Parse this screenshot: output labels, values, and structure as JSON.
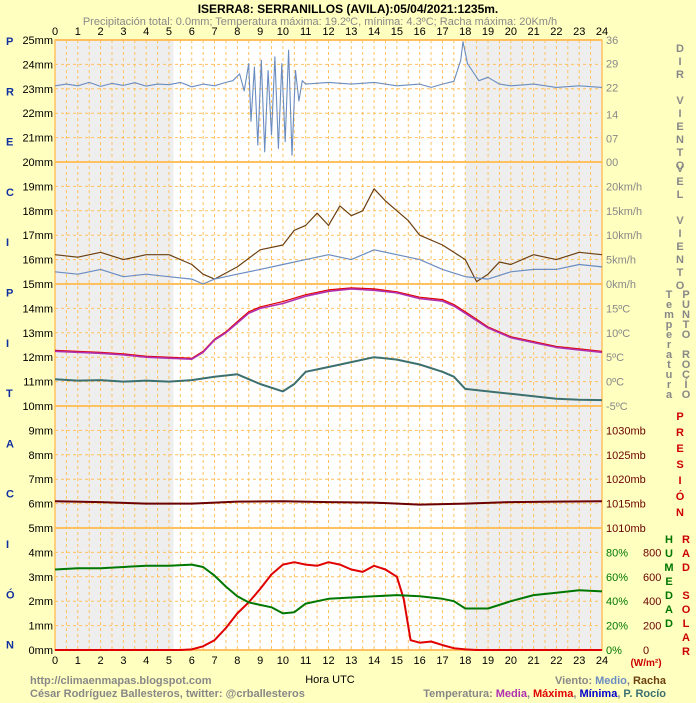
{
  "header": {
    "title": "ISERRA8: SERRANILLOS (AVILA):05/04/2021:1235m.",
    "subtitle": "Precipitación total: 0.0mm; Temperatura máxima: 19.2ºC, mínima: 4.3ºC; Racha máxima: 20Km/h"
  },
  "footer": {
    "url": "http://climaenmapas.blogspot.com",
    "author": "César Rodríguez Ballesteros, twitter: @crballesteros",
    "xlabel": "Hora UTC",
    "wind_legend": {
      "prefix": "Viento:",
      "medio": "Medio",
      "sep": ",",
      "racha": "Racha"
    },
    "temp_legend": {
      "prefix": "Temperatura:",
      "media": "Media",
      "maxima": "Máxima",
      "minima": "Mínima",
      "rocio": "P. Rocío"
    }
  },
  "colors": {
    "background": "#ffffc0",
    "plot": "#ffffff",
    "night": "#eeeeee",
    "grid": "#ffc060",
    "blue": "#6a8cc0",
    "brown": "#6b3f10",
    "purple": "#b030b0",
    "red": "#e00000",
    "teal": "#3c7070",
    "maroon": "#6b0000",
    "green": "#007700",
    "title": "#000000",
    "gray": "#888888"
  },
  "left_axis_letters": [
    "P",
    "R",
    "E",
    "C",
    "I",
    "P",
    "I",
    "T",
    "A",
    "C",
    "I",
    "Ó",
    "N"
  ],
  "side_labels": {
    "wind_dir": "DIR VIENTO",
    "wind_vel": "VEL VIENTO",
    "temp": "Temperatura",
    "dew": "PUNTO ROCÍO",
    "pres": "PRESIÓN",
    "hum": "HUMEDAD",
    "rad": "RAD SOLAR",
    "rad_unit": "(W/m²)"
  },
  "chart_data": {
    "type": "line",
    "x_ticks": [
      "0",
      "1",
      "2",
      "3",
      "4",
      "5",
      "6",
      "7",
      "8",
      "9",
      "10",
      "11",
      "12",
      "13",
      "14",
      "15",
      "16",
      "17",
      "18",
      "19",
      "20",
      "21",
      "22",
      "23",
      "24"
    ],
    "xlim": [
      0,
      24
    ],
    "night_hours": [
      [
        0,
        5.2
      ],
      [
        18,
        24
      ]
    ],
    "precip_ticks": [
      "0mm",
      "1mm",
      "2mm",
      "3mm",
      "4mm",
      "5mm",
      "6mm",
      "7mm",
      "8mm",
      "9mm",
      "10mm",
      "11mm",
      "12mm",
      "13mm",
      "14mm",
      "15mm",
      "16mm",
      "17mm",
      "18mm",
      "19mm",
      "20mm",
      "21mm",
      "22mm",
      "23mm",
      "24mm",
      "25mm"
    ],
    "panels": {
      "wind_dir": {
        "ticks": [
          "00",
          "07",
          "14",
          "22",
          "29",
          "36"
        ],
        "ylim": [
          0,
          36
        ],
        "series": {
          "points": [
            [
              0,
              22.5
            ],
            [
              0.5,
              23
            ],
            [
              1,
              22.5
            ],
            [
              1.5,
              23.5
            ],
            [
              2,
              22.3
            ],
            [
              2.5,
              23.2
            ],
            [
              3,
              22.6
            ],
            [
              3.5,
              23.4
            ],
            [
              4,
              22.4
            ],
            [
              4.5,
              23
            ],
            [
              5,
              22.8
            ],
            [
              5.5,
              23.5
            ],
            [
              6,
              22.2
            ],
            [
              6.5,
              23
            ],
            [
              7,
              22.5
            ],
            [
              7.5,
              23.5
            ],
            [
              7.8,
              24
            ],
            [
              8.1,
              26
            ],
            [
              8.3,
              21
            ],
            [
              8.5,
              29
            ],
            [
              8.6,
              12
            ],
            [
              8.75,
              28
            ],
            [
              8.9,
              5
            ],
            [
              9.05,
              30
            ],
            [
              9.2,
              3
            ],
            [
              9.35,
              27
            ],
            [
              9.5,
              8
            ],
            [
              9.65,
              31
            ],
            [
              9.8,
              4
            ],
            [
              9.95,
              29
            ],
            [
              10.1,
              6
            ],
            [
              10.25,
              33
            ],
            [
              10.4,
              2
            ],
            [
              10.55,
              27
            ],
            [
              10.7,
              18
            ],
            [
              10.85,
              24
            ],
            [
              11,
              23
            ],
            [
              12,
              23.5
            ],
            [
              13,
              23
            ],
            [
              14,
              23.5
            ],
            [
              15,
              22.5
            ],
            [
              16,
              23
            ],
            [
              16.5,
              22
            ],
            [
              17,
              23
            ],
            [
              17.5,
              23.8
            ],
            [
              17.8,
              30
            ],
            [
              17.9,
              35.5
            ],
            [
              18.1,
              29
            ],
            [
              18.3,
              27
            ],
            [
              18.6,
              24
            ],
            [
              19,
              25
            ],
            [
              19.5,
              23
            ],
            [
              20,
              22.5
            ],
            [
              21,
              23
            ],
            [
              22,
              22
            ],
            [
              23,
              22.5
            ],
            [
              24,
              22
            ]
          ]
        }
      },
      "wind_speed": {
        "ticks": [
          "0km/h",
          "5km/h",
          "10km/h",
          "15km/h",
          "20km/h"
        ],
        "ylim": [
          0,
          25
        ],
        "medio": [
          [
            0,
            2.5
          ],
          [
            1,
            2
          ],
          [
            2,
            3
          ],
          [
            3,
            1.5
          ],
          [
            4,
            2
          ],
          [
            5,
            1.5
          ],
          [
            6,
            1
          ],
          [
            6.5,
            0
          ],
          [
            7,
            1
          ],
          [
            8,
            2
          ],
          [
            9,
            3
          ],
          [
            10,
            4
          ],
          [
            11,
            5
          ],
          [
            12,
            6
          ],
          [
            13,
            5
          ],
          [
            14,
            7
          ],
          [
            15,
            6
          ],
          [
            16,
            5
          ],
          [
            17,
            3
          ],
          [
            18,
            1.5
          ],
          [
            19,
            1
          ],
          [
            20,
            2.5
          ],
          [
            21,
            3
          ],
          [
            22,
            3
          ],
          [
            23,
            4
          ],
          [
            24,
            3.5
          ]
        ],
        "racha": [
          [
            0,
            6
          ],
          [
            1,
            5.5
          ],
          [
            2,
            6.5
          ],
          [
            3,
            5
          ],
          [
            4,
            6
          ],
          [
            5,
            6
          ],
          [
            6,
            4
          ],
          [
            6.5,
            2
          ],
          [
            7,
            1
          ],
          [
            8,
            3.5
          ],
          [
            9,
            7
          ],
          [
            10,
            8
          ],
          [
            10.5,
            11
          ],
          [
            11,
            12
          ],
          [
            11.5,
            14.5
          ],
          [
            12,
            12
          ],
          [
            12.5,
            16
          ],
          [
            13,
            14
          ],
          [
            13.5,
            15
          ],
          [
            14,
            19.5
          ],
          [
            14.5,
            17
          ],
          [
            15,
            15
          ],
          [
            15.5,
            13
          ],
          [
            16,
            10
          ],
          [
            17,
            8
          ],
          [
            18,
            5
          ],
          [
            18.5,
            0.5
          ],
          [
            19,
            2
          ],
          [
            19.5,
            4.5
          ],
          [
            20,
            4
          ],
          [
            21,
            6
          ],
          [
            22,
            5
          ],
          [
            23,
            6.5
          ],
          [
            24,
            6
          ]
        ]
      },
      "temp": {
        "ticks": [
          "-5ºC",
          "0ºC",
          "5ºC",
          "10ºC",
          "15ºC"
        ],
        "ylim": [
          -5,
          20
        ],
        "media": [
          [
            0,
            6.2
          ],
          [
            1,
            6
          ],
          [
            2,
            5.8
          ],
          [
            3,
            5.5
          ],
          [
            4,
            5
          ],
          [
            5,
            4.8
          ],
          [
            6,
            4.6
          ],
          [
            6.5,
            6
          ],
          [
            7,
            8.5
          ],
          [
            7.5,
            10
          ],
          [
            8,
            12
          ],
          [
            8.5,
            14
          ],
          [
            9,
            15
          ],
          [
            10,
            16
          ],
          [
            11,
            17.5
          ],
          [
            12,
            18.5
          ],
          [
            13,
            19
          ],
          [
            14,
            18.7
          ],
          [
            15,
            18.2
          ],
          [
            16,
            17
          ],
          [
            17,
            16.5
          ],
          [
            17.5,
            15.5
          ],
          [
            18,
            14
          ],
          [
            19,
            11
          ],
          [
            20,
            9
          ],
          [
            21,
            8
          ],
          [
            22,
            7
          ],
          [
            23,
            6.5
          ],
          [
            24,
            6
          ]
        ],
        "maxima": [
          [
            0,
            6.4
          ],
          [
            1,
            6.2
          ],
          [
            2,
            6
          ],
          [
            3,
            5.7
          ],
          [
            4,
            5.2
          ],
          [
            5,
            5
          ],
          [
            6,
            4.8
          ],
          [
            6.5,
            6.2
          ],
          [
            7,
            8.7
          ],
          [
            7.5,
            10.2
          ],
          [
            8,
            12.3
          ],
          [
            8.5,
            14.3
          ],
          [
            9,
            15.3
          ],
          [
            10,
            16.4
          ],
          [
            11,
            17.8
          ],
          [
            12,
            18.8
          ],
          [
            13,
            19.2
          ],
          [
            14,
            19
          ],
          [
            15,
            18.4
          ],
          [
            16,
            17.3
          ],
          [
            17,
            16.8
          ],
          [
            17.5,
            15.8
          ],
          [
            18,
            14.3
          ],
          [
            19,
            11.2
          ],
          [
            20,
            9.2
          ],
          [
            21,
            8.2
          ],
          [
            22,
            7.2
          ],
          [
            23,
            6.7
          ],
          [
            24,
            6.2
          ]
        ],
        "rocio": [
          [
            0,
            0.5
          ],
          [
            1,
            0.2
          ],
          [
            2,
            0.3
          ],
          [
            3,
            0
          ],
          [
            4,
            0.2
          ],
          [
            5,
            0
          ],
          [
            6,
            0.3
          ],
          [
            7,
            1
          ],
          [
            8,
            1.5
          ],
          [
            9,
            -0.5
          ],
          [
            10,
            -2
          ],
          [
            10.5,
            -0.5
          ],
          [
            11,
            2
          ],
          [
            12,
            3
          ],
          [
            13,
            4
          ],
          [
            14,
            5
          ],
          [
            15,
            4.5
          ],
          [
            16,
            3.5
          ],
          [
            17,
            2
          ],
          [
            17.5,
            1
          ],
          [
            18,
            -1.5
          ],
          [
            19,
            -2
          ],
          [
            20,
            -2.5
          ],
          [
            21,
            -3
          ],
          [
            22,
            -3.5
          ],
          [
            23,
            -3.7
          ],
          [
            24,
            -3.8
          ]
        ]
      },
      "pressure": {
        "ticks": [
          "1010mb",
          "1015mb",
          "1020mb",
          "1025mb",
          "1030mb"
        ],
        "ylim": [
          1010,
          1035
        ],
        "series": [
          [
            0,
            1015.5
          ],
          [
            2,
            1015.3
          ],
          [
            4,
            1015
          ],
          [
            6,
            1015
          ],
          [
            8,
            1015.4
          ],
          [
            10,
            1015.5
          ],
          [
            12,
            1015.3
          ],
          [
            14,
            1015.2
          ],
          [
            16,
            1014.8
          ],
          [
            18,
            1015
          ],
          [
            20,
            1015.3
          ],
          [
            22,
            1015.4
          ],
          [
            24,
            1015.5
          ]
        ]
      },
      "humidity": {
        "ticks": [
          "0%",
          "20%",
          "40%",
          "60%",
          "80%"
        ],
        "ylim": [
          0,
          100
        ],
        "series": [
          [
            0,
            66
          ],
          [
            1,
            67
          ],
          [
            2,
            67
          ],
          [
            3,
            68
          ],
          [
            4,
            69
          ],
          [
            5,
            69
          ],
          [
            6,
            70
          ],
          [
            6.5,
            68
          ],
          [
            7,
            61
          ],
          [
            7.5,
            52
          ],
          [
            8,
            44
          ],
          [
            8.5,
            39
          ],
          [
            9,
            37
          ],
          [
            9.5,
            35
          ],
          [
            10,
            30
          ],
          [
            10.5,
            31
          ],
          [
            11,
            38
          ],
          [
            12,
            42
          ],
          [
            13,
            43
          ],
          [
            14,
            44
          ],
          [
            15,
            45
          ],
          [
            16,
            44
          ],
          [
            17,
            42
          ],
          [
            17.5,
            40
          ],
          [
            18,
            34
          ],
          [
            19,
            34
          ],
          [
            20,
            40
          ],
          [
            21,
            45
          ],
          [
            22,
            47
          ],
          [
            23,
            49
          ],
          [
            24,
            48
          ]
        ]
      },
      "radiation": {
        "ticks": [
          "0",
          "200",
          "400",
          "600",
          "800"
        ],
        "ylim": [
          0,
          1000
        ],
        "series": [
          [
            0,
            0
          ],
          [
            5.5,
            0
          ],
          [
            6,
            5
          ],
          [
            6.5,
            30
          ],
          [
            7,
            80
          ],
          [
            7.5,
            180
          ],
          [
            8,
            300
          ],
          [
            8.5,
            390
          ],
          [
            9,
            500
          ],
          [
            9.5,
            620
          ],
          [
            10,
            700
          ],
          [
            10.5,
            720
          ],
          [
            11,
            700
          ],
          [
            11.5,
            690
          ],
          [
            12,
            720
          ],
          [
            12.5,
            700
          ],
          [
            13,
            660
          ],
          [
            13.5,
            640
          ],
          [
            14,
            690
          ],
          [
            14.5,
            660
          ],
          [
            15,
            600
          ],
          [
            15.3,
            420
          ],
          [
            15.6,
            80
          ],
          [
            16,
            60
          ],
          [
            16.5,
            70
          ],
          [
            17,
            40
          ],
          [
            17.5,
            15
          ],
          [
            18,
            5
          ],
          [
            18.5,
            0
          ],
          [
            24,
            0
          ]
        ]
      }
    }
  }
}
